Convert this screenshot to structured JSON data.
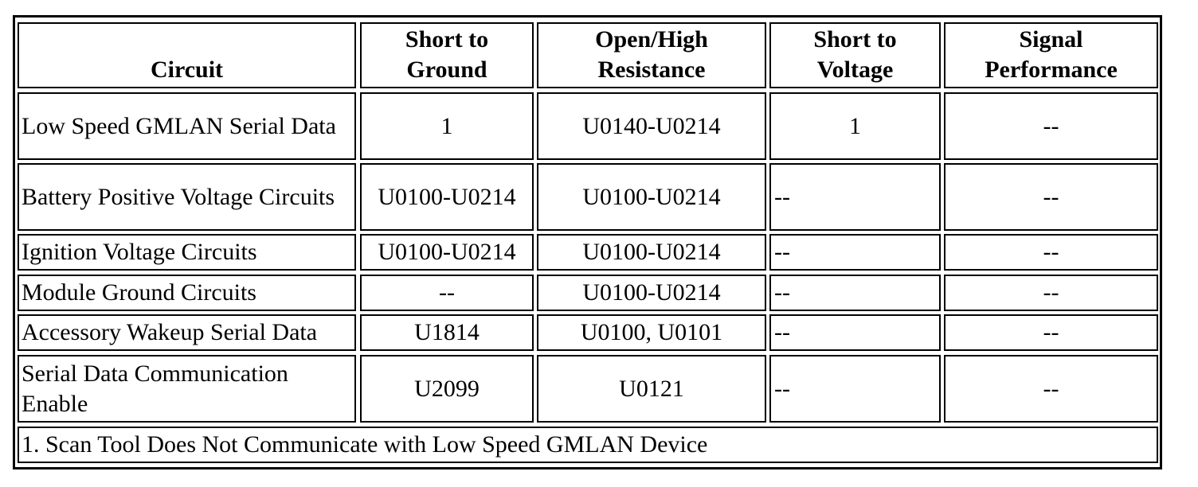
{
  "table": {
    "headers": [
      "Circuit",
      "Short to\nGround",
      "Open/High\nResistance",
      "Short to\nVoltage",
      "Signal\nPerformance"
    ],
    "rows": [
      {
        "circuit": "Low Speed GMLAN Serial Data",
        "short_ground": "1",
        "open_high": "U0140-U0214",
        "short_voltage": "1",
        "signal_perf": "--"
      },
      {
        "circuit": "Battery Positive Voltage Circuits",
        "short_ground": "U0100-U0214",
        "open_high": "U0100-U0214",
        "short_voltage": "--",
        "signal_perf": "--"
      },
      {
        "circuit": "Ignition Voltage Circuits",
        "short_ground": "U0100-U0214",
        "open_high": "U0100-U0214",
        "short_voltage": "--",
        "signal_perf": "--"
      },
      {
        "circuit": "Module Ground Circuits",
        "short_ground": "--",
        "open_high": "U0100-U0214",
        "short_voltage": "--",
        "signal_perf": "--"
      },
      {
        "circuit": "Accessory Wakeup Serial Data",
        "short_ground": "U1814",
        "open_high": "U0100, U0101",
        "short_voltage": "--",
        "signal_perf": "--"
      },
      {
        "circuit": "Serial Data Communication Enable",
        "short_ground": "U2099",
        "open_high": "U0121",
        "short_voltage": "--",
        "signal_perf": "--"
      }
    ],
    "footnote": "1. Scan Tool Does Not Communicate with Low Speed GMLAN Device"
  }
}
